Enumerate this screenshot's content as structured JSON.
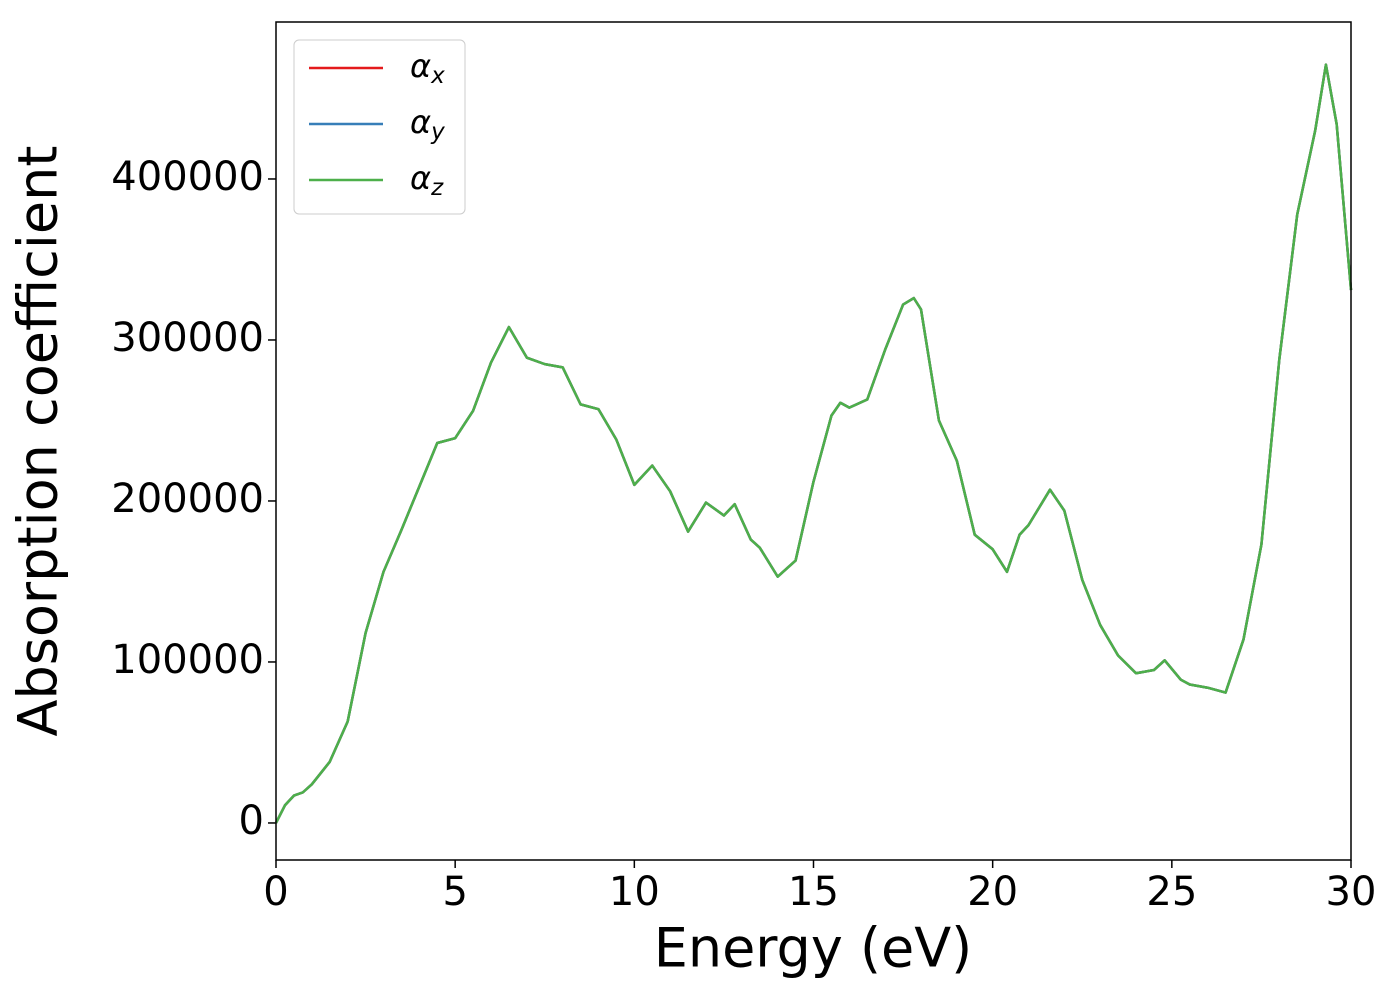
{
  "chart_data": {
    "type": "line",
    "xlabel": "Energy (eV)",
    "ylabel": "Absorption coefficient",
    "x": [
      0,
      0.25,
      0.5,
      0.75,
      1,
      1.5,
      2,
      2.5,
      3,
      3.5,
      4,
      4.5,
      5,
      5.5,
      6,
      6.5,
      7,
      7.5,
      8,
      8.5,
      9,
      9.5,
      10,
      10.5,
      11,
      11.5,
      12,
      12.5,
      12.8,
      13.25,
      13.5,
      14,
      14.5,
      15,
      15.5,
      15.75,
      16,
      16.5,
      17,
      17.5,
      17.8,
      18,
      18.5,
      19,
      19.5,
      20,
      20.4,
      20.75,
      21,
      21.6,
      22,
      22.5,
      23,
      23.5,
      24,
      24.5,
      24.8,
      25.25,
      25.5,
      26,
      26.5,
      27,
      27.5,
      28,
      28.5,
      29,
      29.3,
      29.6,
      30
    ],
    "series": [
      {
        "name": "αx",
        "color": "#e41a1c",
        "values": [
          0,
          11000,
          17000,
          19000,
          24000,
          38000,
          63000,
          118000,
          156000,
          182000,
          209000,
          236000,
          239000,
          256000,
          286000,
          308000,
          289000,
          285000,
          283000,
          260000,
          257000,
          238000,
          210000,
          222000,
          206000,
          181000,
          199000,
          191000,
          198000,
          176000,
          171000,
          153000,
          163000,
          212000,
          253000,
          261000,
          258000,
          263000,
          294000,
          322000,
          326000,
          319000,
          250000,
          225000,
          179000,
          170000,
          156000,
          179000,
          185000,
          207000,
          194000,
          151000,
          123000,
          104000,
          93000,
          95000,
          101000,
          89000,
          86000,
          84000,
          81000,
          114000,
          173000,
          288000,
          378000,
          430000,
          471000,
          434000,
          331000
        ]
      },
      {
        "name": "αy",
        "color": "#377eb8",
        "values": [
          0,
          11000,
          17000,
          19000,
          24000,
          38000,
          63000,
          118000,
          156000,
          182000,
          209000,
          236000,
          239000,
          256000,
          286000,
          308000,
          289000,
          285000,
          283000,
          260000,
          257000,
          238000,
          210000,
          222000,
          206000,
          181000,
          199000,
          191000,
          198000,
          176000,
          171000,
          153000,
          163000,
          212000,
          253000,
          261000,
          258000,
          263000,
          294000,
          322000,
          326000,
          319000,
          250000,
          225000,
          179000,
          170000,
          156000,
          179000,
          185000,
          207000,
          194000,
          151000,
          123000,
          104000,
          93000,
          95000,
          101000,
          89000,
          86000,
          84000,
          81000,
          114000,
          173000,
          288000,
          378000,
          430000,
          471000,
          434000,
          331000
        ]
      },
      {
        "name": "αz",
        "color": "#4daf4a",
        "values": [
          0,
          11000,
          17000,
          19000,
          24000,
          38000,
          63000,
          118000,
          156000,
          182000,
          209000,
          236000,
          239000,
          256000,
          286000,
          308000,
          289000,
          285000,
          283000,
          260000,
          257000,
          238000,
          210000,
          222000,
          206000,
          181000,
          199000,
          191000,
          198000,
          176000,
          171000,
          153000,
          163000,
          212000,
          253000,
          261000,
          258000,
          263000,
          294000,
          322000,
          326000,
          319000,
          250000,
          225000,
          179000,
          170000,
          156000,
          179000,
          185000,
          207000,
          194000,
          151000,
          123000,
          104000,
          93000,
          95000,
          101000,
          89000,
          86000,
          84000,
          81000,
          114000,
          173000,
          288000,
          378000,
          430000,
          471000,
          434000,
          331000
        ]
      }
    ],
    "xlim": [
      0,
      30
    ],
    "xticks": [
      0,
      5,
      10,
      15,
      20,
      25,
      30
    ],
    "ylim": [
      -23000,
      497500
    ],
    "yticks": [
      0,
      100000,
      200000,
      300000,
      400000
    ],
    "grid": false,
    "legend": "upper left"
  }
}
